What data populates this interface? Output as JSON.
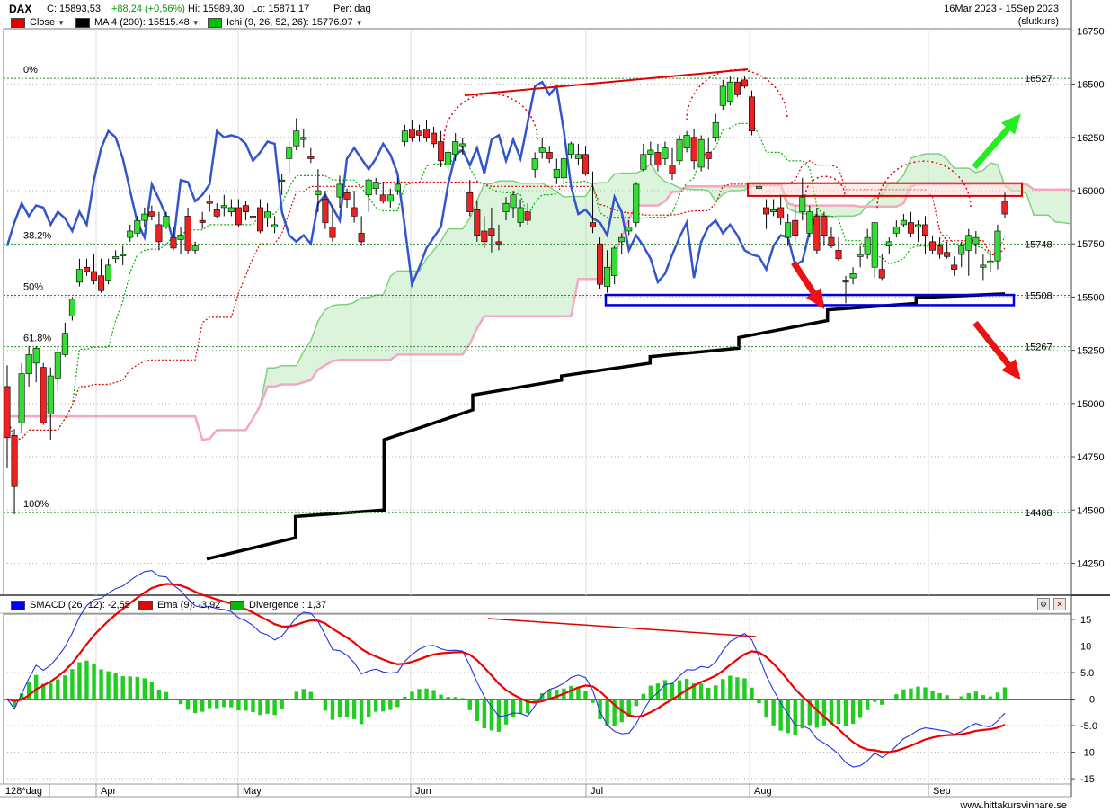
{
  "header": {
    "symbol": "DAX",
    "close_label": "C: 15893,53",
    "change": "+88,24 (+0,56%)",
    "high": "Hi: 15989,30",
    "low": "Lo: 15871,17",
    "period": "Per: dag",
    "date_range": "16Mar 2023 - 15Sep 2023",
    "price_mode": "(slutkurs)"
  },
  "legend": {
    "close": "Close",
    "ma": "MA 4 (200): 15515.48",
    "ichi": "Ichi (9, 26, 52, 26): 15776.97",
    "close_color": "#e00000",
    "ma_color": "#000000",
    "ichi_color": "#00c000"
  },
  "macd_legend": {
    "smacd": "SMACD (26, 12): -2,55",
    "ema": "Ema (9): -3,92",
    "divergence": "Divergence : 1,37",
    "smacd_color": "#0000ff",
    "ema_color": "#ee0000",
    "divergence_color": "#00c000"
  },
  "x_axis": {
    "period_label": "128*dag",
    "months": [
      "Apr",
      "May",
      "Jun",
      "Jul",
      "Aug",
      "Sep"
    ]
  },
  "footer": "www.hittakursvinnare.se",
  "chart_data": [
    {
      "type": "candlestick",
      "title": "DAX",
      "ylim": [
        14100,
        16760
      ],
      "y_ticks": [
        16750,
        16500,
        16250,
        16000,
        15750,
        15500,
        15250,
        15000,
        14750,
        14500,
        14250
      ],
      "y_tick_labels": [
        "16750",
        "16500",
        "16250",
        "16000",
        "15750",
        "15500",
        "15250",
        "15000",
        "14750",
        "14500",
        "14250"
      ],
      "fib_levels": [
        {
          "label": "0%",
          "value": 16527,
          "value_label": "16527"
        },
        {
          "label": "38.2%",
          "value": 15748,
          "value_label": "15748"
        },
        {
          "label": "50%",
          "value": 15508,
          "value_label": "15508"
        },
        {
          "label": "61.8%",
          "value": 15267,
          "value_label": "15267"
        },
        {
          "label": "100%",
          "value": 14488,
          "value_label": "14488"
        }
      ],
      "current_close": 15893.53,
      "grid": true,
      "candles": [
        [
          15080,
          15180,
          14700,
          14840
        ],
        [
          14850,
          14880,
          14480,
          14610
        ],
        [
          14910,
          15190,
          14860,
          15140
        ],
        [
          15140,
          15270,
          15080,
          15230
        ],
        [
          15190,
          15270,
          15100,
          15260
        ],
        [
          15170,
          15190,
          14900,
          14910
        ],
        [
          14950,
          15170,
          14830,
          15130
        ],
        [
          15120,
          15270,
          15060,
          15240
        ],
        [
          15230,
          15380,
          15220,
          15330
        ],
        [
          15410,
          15500,
          15390,
          15490
        ],
        [
          15570,
          15680,
          15550,
          15630
        ],
        [
          15640,
          15680,
          15600,
          15620
        ],
        [
          15620,
          15700,
          15560,
          15580
        ],
        [
          15600,
          15680,
          15520,
          15530
        ],
        [
          15580,
          15680,
          15560,
          15650
        ],
        [
          15680,
          15720,
          15660,
          15690
        ],
        [
          15700,
          15740,
          15650,
          15700
        ],
        [
          15780,
          15840,
          15760,
          15810
        ],
        [
          15800,
          15880,
          15780,
          15860
        ],
        [
          15860,
          15920,
          15830,
          15890
        ],
        [
          15900,
          15930,
          15860,
          15880
        ],
        [
          15840,
          15900,
          15720,
          15760
        ],
        [
          15830,
          15900,
          15820,
          15880
        ],
        [
          15780,
          15830,
          15720,
          15730
        ],
        [
          15770,
          15830,
          15700,
          15790
        ],
        [
          15880,
          15920,
          15700,
          15720
        ],
        [
          15720,
          15760,
          15700,
          15740
        ],
        [
          15860,
          15900,
          15820,
          15850
        ],
        [
          15950,
          15980,
          15900,
          15940
        ],
        [
          15910,
          15940,
          15870,
          15880
        ],
        [
          15920,
          15980,
          15880,
          15930
        ],
        [
          15900,
          15960,
          15880,
          15920
        ],
        [
          15920,
          15960,
          15830,
          15840
        ],
        [
          15930,
          15950,
          15860,
          15900
        ],
        [
          15880,
          15920,
          15850,
          15870
        ],
        [
          15920,
          15960,
          15800,
          15810
        ],
        [
          15870,
          15940,
          15830,
          15900
        ],
        [
          15830,
          15880,
          15800,
          15840
        ],
        [
          16050,
          16080,
          15980,
          16050
        ],
        [
          16150,
          16230,
          16080,
          16200
        ],
        [
          16210,
          16340,
          16190,
          16280
        ],
        [
          16240,
          16290,
          16200,
          16250
        ],
        [
          16160,
          16200,
          16130,
          16150
        ],
        [
          15980,
          16100,
          15900,
          16000
        ],
        [
          15960,
          16000,
          15820,
          15850
        ],
        [
          15830,
          15930,
          15760,
          15780
        ],
        [
          15970,
          16070,
          15920,
          16030
        ],
        [
          15990,
          16010,
          15920,
          15960
        ],
        [
          15920,
          16000,
          15850,
          15880
        ],
        [
          15800,
          15880,
          15740,
          15760
        ],
        [
          15980,
          16060,
          15900,
          16050
        ],
        [
          16010,
          16060,
          15980,
          16040
        ],
        [
          15980,
          16040,
          15940,
          15950
        ],
        [
          15950,
          16010,
          15920,
          15980
        ],
        [
          16000,
          16060,
          15980,
          16030
        ],
        [
          16230,
          16310,
          16210,
          16280
        ],
        [
          16290,
          16330,
          16230,
          16250
        ],
        [
          16280,
          16310,
          16230,
          16260
        ],
        [
          16290,
          16330,
          16230,
          16250
        ],
        [
          16270,
          16300,
          16200,
          16220
        ],
        [
          16230,
          16280,
          16110,
          16140
        ],
        [
          16120,
          16190,
          16090,
          16180
        ],
        [
          16170,
          16270,
          16140,
          16230
        ],
        [
          16210,
          16250,
          16170,
          16220
        ],
        [
          15990,
          16050,
          15880,
          15900
        ],
        [
          15910,
          15950,
          15760,
          15790
        ],
        [
          15810,
          15880,
          15730,
          15760
        ],
        [
          15820,
          15920,
          15710,
          15790
        ],
        [
          15760,
          15840,
          15720,
          15750
        ],
        [
          15900,
          15970,
          15860,
          15940
        ],
        [
          15920,
          16000,
          15870,
          15980
        ],
        [
          15850,
          15960,
          15830,
          15920
        ],
        [
          15900,
          15940,
          15840,
          15860
        ],
        [
          16100,
          16180,
          16060,
          16150
        ],
        [
          16180,
          16250,
          16150,
          16200
        ],
        [
          16180,
          16210,
          16130,
          16150
        ],
        [
          16060,
          16150,
          16030,
          16100
        ],
        [
          16060,
          16160,
          16040,
          16150
        ],
        [
          16170,
          16230,
          16150,
          16220
        ],
        [
          16150,
          16220,
          16120,
          16170
        ],
        [
          16170,
          16210,
          16070,
          16080
        ],
        [
          15850,
          16090,
          15800,
          15830
        ],
        [
          15750,
          15780,
          15540,
          15560
        ],
        [
          15550,
          15720,
          15520,
          15640
        ],
        [
          15600,
          15740,
          15560,
          15730
        ],
        [
          15760,
          15800,
          15700,
          15780
        ],
        [
          15810,
          15860,
          15790,
          15830
        ],
        [
          15850,
          16040,
          15830,
          16030
        ],
        [
          16100,
          16220,
          16090,
          16170
        ],
        [
          16170,
          16230,
          16120,
          16190
        ],
        [
          16180,
          16220,
          16090,
          16120
        ],
        [
          16150,
          16230,
          16120,
          16200
        ],
        [
          16120,
          16200,
          16050,
          16080
        ],
        [
          16140,
          16260,
          16120,
          16240
        ],
        [
          16200,
          16280,
          16180,
          16260
        ],
        [
          16250,
          16290,
          16100,
          16140
        ],
        [
          16110,
          16260,
          16090,
          16240
        ],
        [
          16180,
          16250,
          16100,
          16150
        ],
        [
          16250,
          16360,
          16230,
          16320
        ],
        [
          16400,
          16520,
          16380,
          16490
        ],
        [
          16420,
          16540,
          16400,
          16510
        ],
        [
          16510,
          16530,
          16440,
          16450
        ],
        [
          16520,
          16540,
          16480,
          16490
        ],
        [
          16440,
          16470,
          16260,
          16280
        ],
        [
          16010,
          16150,
          15990,
          16020
        ],
        [
          15920,
          15960,
          15820,
          15890
        ],
        [
          15900,
          15960,
          15880,
          15910
        ],
        [
          15920,
          15980,
          15840,
          15870
        ],
        [
          15780,
          15890,
          15740,
          15850
        ],
        [
          15860,
          15930,
          15760,
          15790
        ],
        [
          15900,
          16060,
          15860,
          15970
        ],
        [
          15800,
          15930,
          15780,
          15900
        ],
        [
          15880,
          15920,
          15700,
          15720
        ],
        [
          15880,
          15900,
          15740,
          15790
        ],
        [
          15780,
          15830,
          15730,
          15740
        ],
        [
          15720,
          15780,
          15670,
          15680
        ],
        [
          15580,
          15600,
          15470,
          15570
        ],
        [
          15590,
          15640,
          15560,
          15610
        ],
        [
          15690,
          15740,
          15640,
          15700
        ],
        [
          15700,
          15820,
          15680,
          15780
        ],
        [
          15640,
          15840,
          15590,
          15850
        ],
        [
          15630,
          15700,
          15580,
          15590
        ],
        [
          15740,
          15780,
          15700,
          15760
        ],
        [
          15800,
          15860,
          15780,
          15830
        ],
        [
          15840,
          15890,
          15830,
          15860
        ],
        [
          15850,
          15900,
          15780,
          15800
        ],
        [
          15830,
          15860,
          15760,
          15840
        ],
        [
          15840,
          15880,
          15700,
          15790
        ],
        [
          15760,
          15790,
          15700,
          15720
        ],
        [
          15740,
          15780,
          15680,
          15700
        ],
        [
          15710,
          15760,
          15680,
          15690
        ],
        [
          15650,
          15690,
          15600,
          15630
        ],
        [
          15700,
          15760,
          15640,
          15740
        ],
        [
          15720,
          15820,
          15600,
          15790
        ],
        [
          15750,
          15810,
          15700,
          15780
        ],
        [
          15640,
          15700,
          15580,
          15650
        ],
        [
          15660,
          15720,
          15620,
          15670
        ],
        [
          15670,
          15840,
          15630,
          15810
        ],
        [
          15950,
          15990,
          15870,
          15890
        ]
      ],
      "ma200": [
        [
          14270,
          14370
        ],
        [
          14470,
          14500
        ],
        [
          14830,
          14970
        ],
        [
          15040,
          15110
        ],
        [
          15130,
          15190
        ],
        [
          15220,
          15260
        ],
        [
          15310,
          15390
        ],
        [
          15440,
          15470
        ],
        [
          15497,
          15515
        ]
      ],
      "annotations": [
        "red rectangle resistance ~15975-16035",
        "blue rectangle support ~15460-15510",
        "red trend line on highs Jun-Jul",
        "green arrow up",
        "red arrows down"
      ]
    },
    {
      "type": "line+bar",
      "title": "SMACD",
      "ylim": [
        -16,
        16
      ],
      "y_ticks": [
        15,
        10,
        5,
        0,
        -5,
        -10,
        -15
      ],
      "y_tick_labels": [
        "15",
        "10",
        "5.0",
        "0",
        "-5.0",
        "-10",
        "-15"
      ],
      "series": [
        {
          "name": "SMACD (26, 12)",
          "current": -2.55
        },
        {
          "name": "Ema (9)",
          "current": -3.92
        },
        {
          "name": "Divergence",
          "current": 1.37
        }
      ]
    }
  ]
}
